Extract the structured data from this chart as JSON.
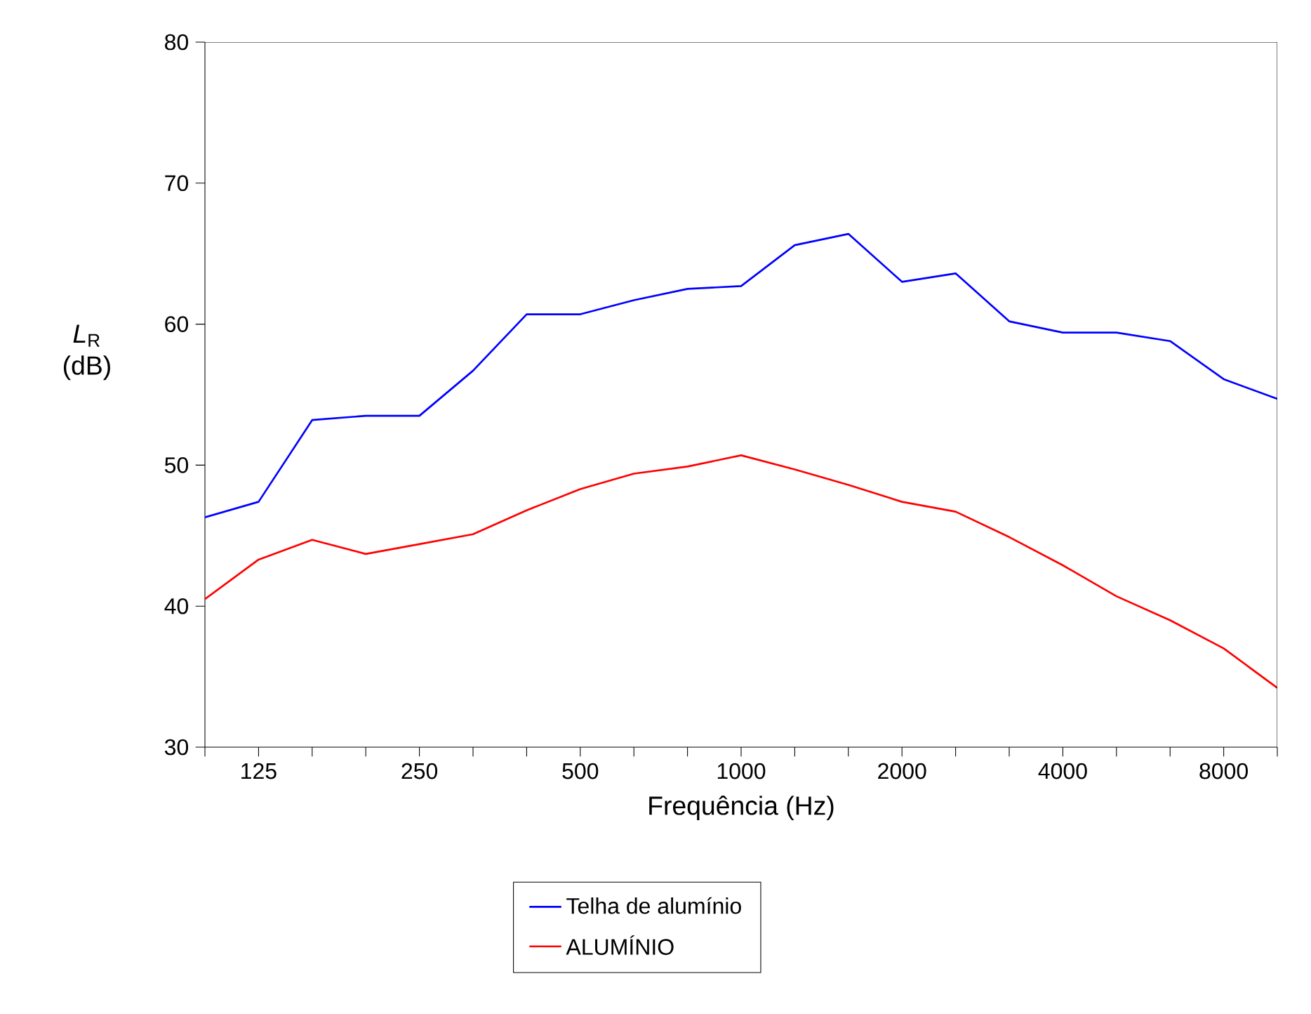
{
  "chart_data": {
    "type": "line",
    "xlabel": "Frequência (Hz)",
    "ylabel": "*L*$_{R}$ (dB)",
    "categories": [
      null,
      "125",
      null,
      null,
      "250",
      null,
      null,
      "500",
      null,
      null,
      "1000",
      null,
      null,
      "2000",
      null,
      null,
      "4000",
      null,
      null,
      "8000",
      null
    ],
    "ylim": [
      30,
      80
    ],
    "yticks": [
      30,
      40,
      50,
      60,
      70,
      80
    ],
    "legend": "bottom",
    "marker": "none",
    "line_style": "solid",
    "series": [
      {
        "name": "Telha de alumínio",
        "color": "#0000ff",
        "values": [
          46.3,
          47.4,
          53.2,
          53.5,
          53.5,
          56.7,
          60.7,
          60.7,
          61.7,
          62.5,
          62.7,
          65.6,
          66.4,
          63.0,
          63.6,
          60.2,
          59.4,
          59.4,
          58.8,
          56.1,
          54.7
        ]
      },
      {
        "name": "ALUMÍNIO",
        "color": "#ff0000",
        "values": [
          40.5,
          43.3,
          44.7,
          43.7,
          44.4,
          45.1,
          46.8,
          48.3,
          49.4,
          49.9,
          50.7,
          49.7,
          48.6,
          47.4,
          46.7,
          44.9,
          42.9,
          40.7,
          39.0,
          37.0,
          34.2
        ]
      }
    ]
  }
}
